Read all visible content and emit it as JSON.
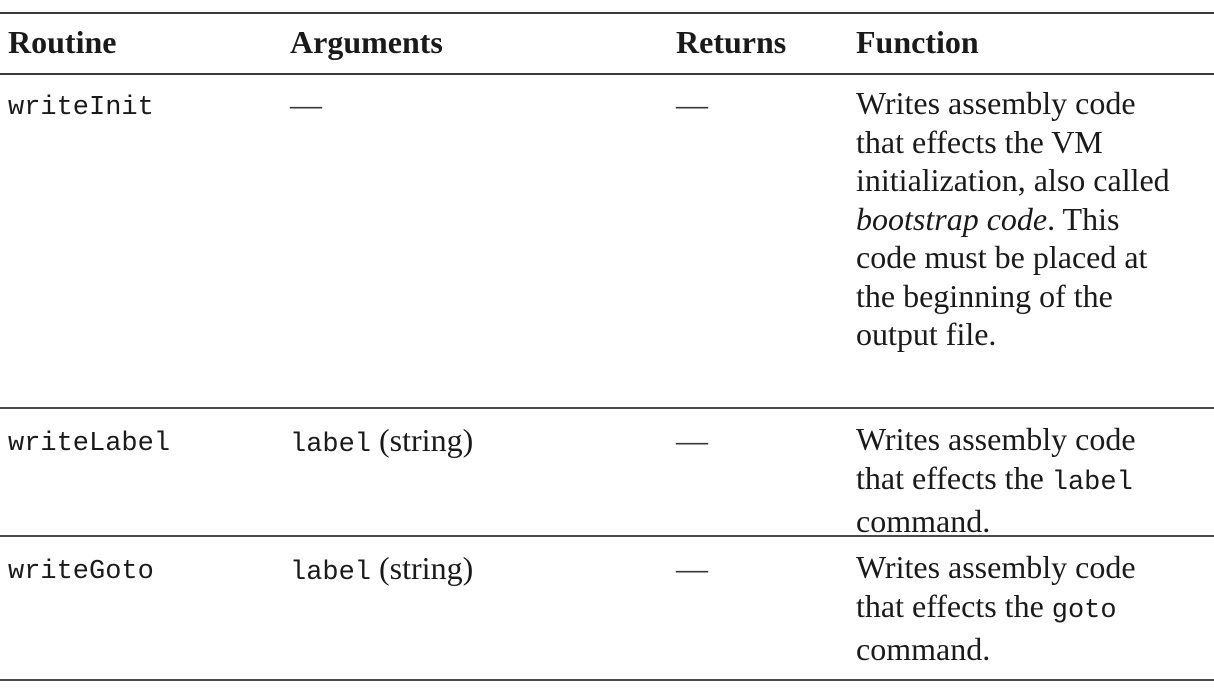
{
  "table": {
    "headers": [
      "Routine",
      "Arguments",
      "Returns",
      "Function"
    ],
    "rows": [
      {
        "routine": "writeInit",
        "arguments": "—",
        "returns": "—",
        "function_lines": [
          "Writes assembly code",
          "that effects the VM",
          "initialization, also called",
          "bootstrap code",
          ". This",
          "code must be placed at",
          "the beginning of the",
          "output file."
        ]
      },
      {
        "routine": "writeLabel",
        "arguments_code": "label",
        "arguments_type": "(string)",
        "returns": "—",
        "function_lines": [
          "Writes assembly code",
          "that effects the",
          "label",
          "command."
        ]
      },
      {
        "routine": "writeGoto",
        "arguments_code": "label",
        "arguments_type": "(string)",
        "returns": "—",
        "function_lines": [
          "Writes assembly code",
          "that effects the",
          "goto",
          "command."
        ]
      }
    ]
  }
}
